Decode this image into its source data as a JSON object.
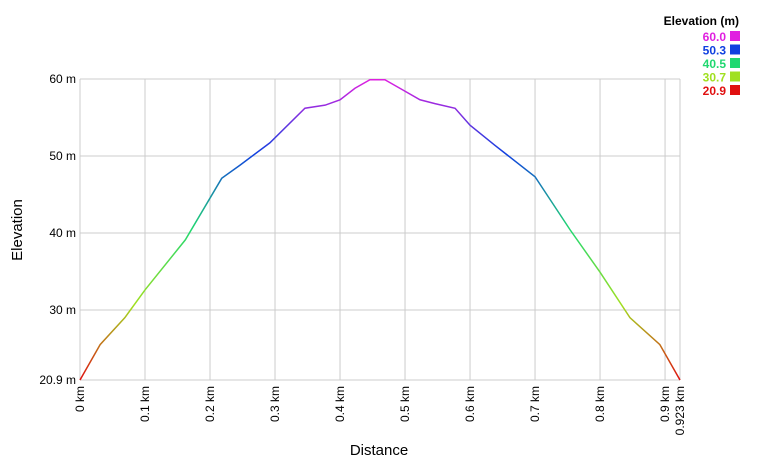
{
  "chart_data": {
    "type": "line",
    "x_label": "Distance",
    "y_label": "Elevation",
    "x": [
      0,
      0.031,
      0.069,
      0.1,
      0.162,
      0.218,
      0.246,
      0.292,
      0.346,
      0.377,
      0.4,
      0.423,
      0.446,
      0.469,
      0.492,
      0.523,
      0.546,
      0.577,
      0.6,
      0.638,
      0.7,
      0.754,
      0.8,
      0.846,
      0.892,
      0.923
    ],
    "series": [
      {
        "name": "Elevation",
        "values": [
          20.9,
          25.5,
          29.0,
          32.6,
          39.1,
          47.1,
          48.8,
          51.7,
          56.2,
          56.6,
          57.3,
          58.8,
          59.9,
          59.9,
          58.8,
          57.3,
          56.8,
          56.2,
          54.0,
          51.4,
          47.3,
          40.4,
          34.9,
          29.0,
          25.5,
          20.9
        ]
      }
    ],
    "xlim": [
      0,
      0.923
    ],
    "ylim": [
      20.9,
      60
    ],
    "xticks": [
      {
        "value": 0,
        "label": "0 km"
      },
      {
        "value": 0.1,
        "label": "0.1 km"
      },
      {
        "value": 0.2,
        "label": "0.2 km"
      },
      {
        "value": 0.3,
        "label": "0.3 km"
      },
      {
        "value": 0.4,
        "label": "0.4 km"
      },
      {
        "value": 0.5,
        "label": "0.5 km"
      },
      {
        "value": 0.6,
        "label": "0.6 km"
      },
      {
        "value": 0.7,
        "label": "0.7 km"
      },
      {
        "value": 0.8,
        "label": "0.8 km"
      },
      {
        "value": 0.9,
        "label": "0.9 km"
      },
      {
        "value": 0.923,
        "label": "0.923 km"
      }
    ],
    "yticks": [
      {
        "value": 20.9,
        "label": "20.9 m"
      },
      {
        "value": 30,
        "label": "30 m"
      },
      {
        "value": 40,
        "label": "40 m"
      },
      {
        "value": 50,
        "label": "50 m"
      },
      {
        "value": 60,
        "label": "60 m"
      }
    ],
    "grid": true,
    "color_legend": {
      "title": "Elevation (m)",
      "values": [
        60.0,
        50.3,
        40.5,
        30.7,
        20.9
      ],
      "value_labels": [
        "60.0",
        "50.3",
        "40.5",
        "30.7",
        "20.9"
      ],
      "colors": [
        "#e020e0",
        "#1040e0",
        "#20d870",
        "#a0e020",
        "#e01010"
      ]
    }
  }
}
